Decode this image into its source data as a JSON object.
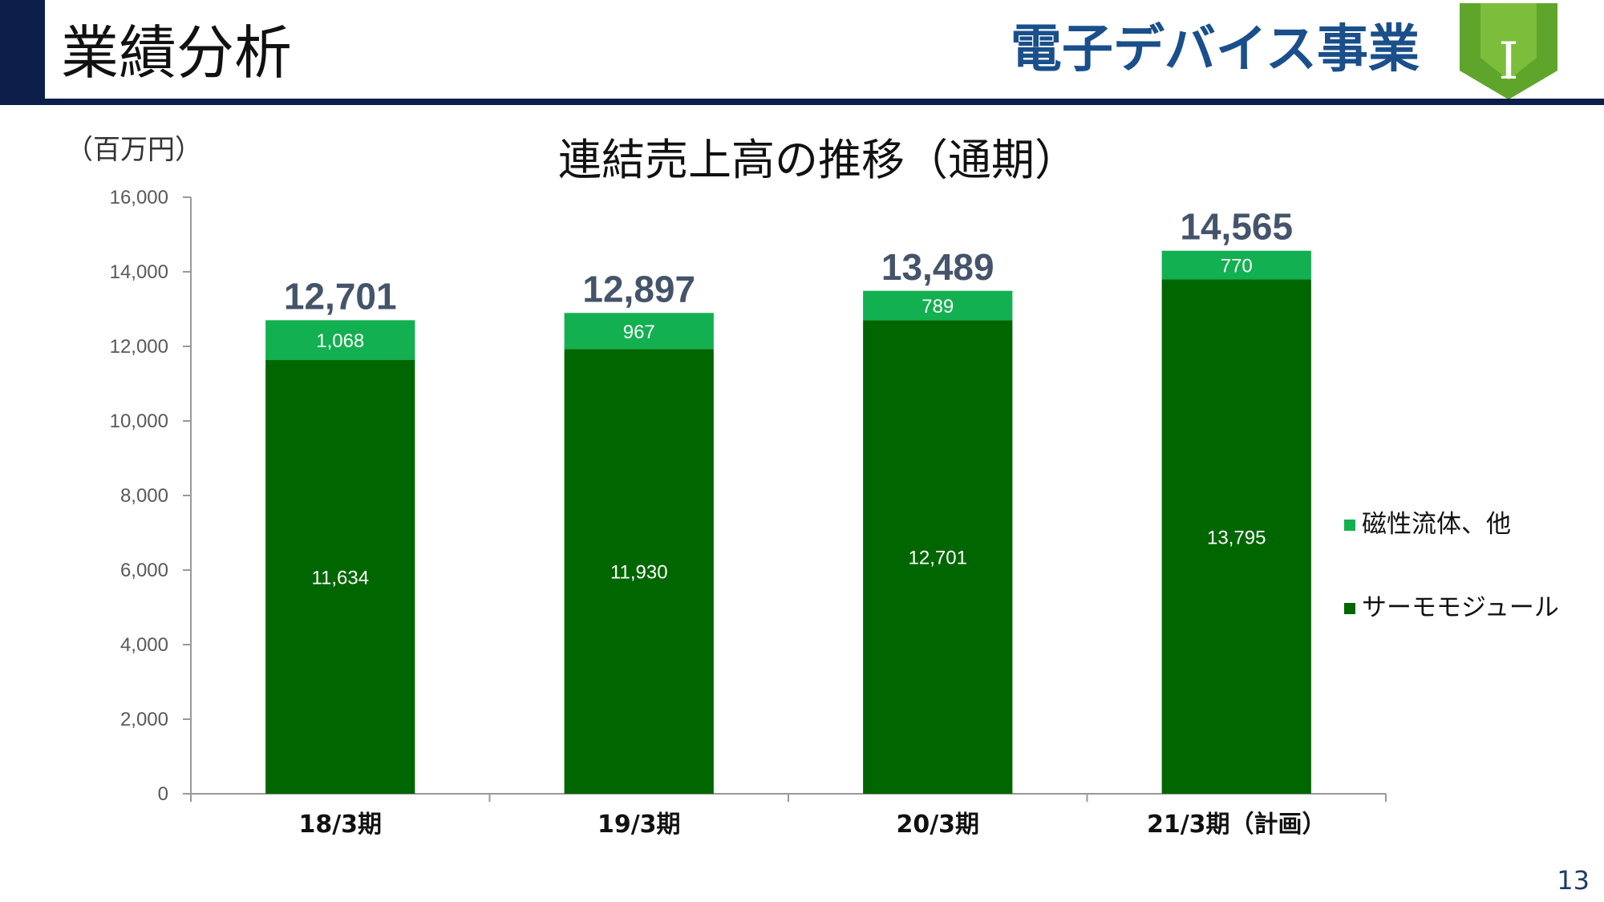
{
  "header": {
    "page_title": "業績分析",
    "section_title": "電子デバイス事業",
    "badge_letter": "I"
  },
  "page_number": "13",
  "colors": {
    "navy": "#0b1f4a",
    "section_blue": "#1a4f8b",
    "dark_green": "#006600",
    "light_green": "#12b050",
    "badge_green": "#7dbd3c"
  },
  "chart_data": {
    "type": "bar",
    "stacked": true,
    "title": "連結売上高の推移（通期）",
    "unit_label": "（百万円）",
    "categories": [
      "18/3期",
      "19/3期",
      "20/3期",
      "21/3期（計画）"
    ],
    "series": [
      {
        "name": "サーモモジュール",
        "values": [
          11634,
          11930,
          12701,
          13795
        ],
        "value_labels": [
          "11,634",
          "11,930",
          "12,701",
          "13,795"
        ],
        "color": "#006600"
      },
      {
        "name": "磁性流体、他",
        "values": [
          1068,
          967,
          789,
          770
        ],
        "value_labels": [
          "1,068",
          "967",
          "789",
          "770"
        ],
        "color": "#12b050"
      }
    ],
    "totals": [
      12701,
      12897,
      13489,
      14565
    ],
    "total_labels": [
      "12,701",
      "12,897",
      "13,489",
      "14,565"
    ],
    "ylim": [
      0,
      16000
    ],
    "yticks": [
      0,
      2000,
      4000,
      6000,
      8000,
      10000,
      12000,
      14000,
      16000
    ],
    "ytick_labels": [
      "0",
      "2,000",
      "4,000",
      "6,000",
      "8,000",
      "10,000",
      "12,000",
      "14,000",
      "16,000"
    ],
    "legend_position": "right",
    "legend_order": [
      1,
      0
    ]
  }
}
